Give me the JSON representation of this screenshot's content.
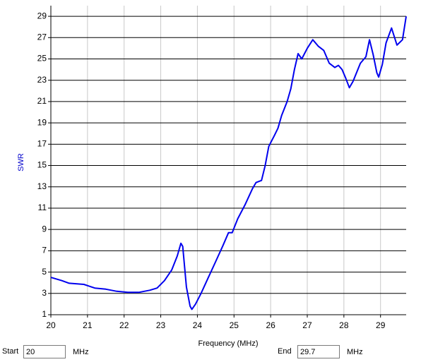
{
  "chart_data": {
    "type": "line",
    "x_label": "Frequency (MHz)",
    "y_label": "SWR",
    "x": [
      20,
      20.3,
      20.5,
      20.9,
      21.2,
      21.5,
      21.8,
      22.1,
      22.4,
      22.7,
      22.9,
      23.1,
      23.3,
      23.45,
      23.55,
      23.6,
      23.7,
      23.8,
      23.85,
      23.95,
      24.1,
      24.3,
      24.5,
      24.7,
      24.85,
      24.95,
      25.1,
      25.3,
      25.5,
      25.6,
      25.75,
      25.85,
      25.95,
      26.1,
      26.2,
      26.3,
      26.45,
      26.55,
      26.65,
      26.75,
      26.85,
      27.0,
      27.15,
      27.3,
      27.45,
      27.6,
      27.75,
      27.85,
      27.95,
      28.05,
      28.15,
      28.25,
      28.45,
      28.6,
      28.7,
      28.8,
      28.9,
      28.95,
      29.05,
      29.15,
      29.3,
      29.45,
      29.6,
      29.7
    ],
    "values": [
      4.5,
      4.2,
      3.95,
      3.85,
      3.5,
      3.4,
      3.2,
      3.1,
      3.1,
      3.3,
      3.5,
      4.2,
      5.2,
      6.5,
      7.7,
      7.4,
      3.6,
      1.8,
      1.5,
      2.0,
      3.0,
      4.5,
      6.0,
      7.5,
      8.7,
      8.7,
      10,
      11.3,
      12.8,
      13.4,
      13.6,
      15,
      16.8,
      17.8,
      18.5,
      19.7,
      21,
      22.2,
      24,
      25.5,
      25,
      26,
      26.8,
      26.2,
      25.8,
      24.6,
      24.2,
      24.4,
      24,
      23.2,
      22.3,
      22.9,
      24.6,
      25.2,
      26.8,
      25.4,
      23.7,
      23.3,
      24.5,
      26.5,
      27.9,
      26.3,
      26.8,
      29.0
    ],
    "color": "#0000ee",
    "xlim": [
      20,
      29.7
    ],
    "xticks": [
      20,
      21,
      22,
      23,
      24,
      25,
      26,
      27,
      28,
      29
    ],
    "ylim": [
      1,
      30
    ],
    "yticks": [
      1,
      3,
      5,
      7,
      9,
      11,
      13,
      15,
      17,
      19,
      21,
      23,
      25,
      27,
      29
    ],
    "grid": true
  },
  "controls": {
    "start_label": "Start",
    "start_value": "20",
    "start_unit": "MHz",
    "end_label": "End",
    "end_value": "29.7",
    "end_unit": "MHz"
  }
}
